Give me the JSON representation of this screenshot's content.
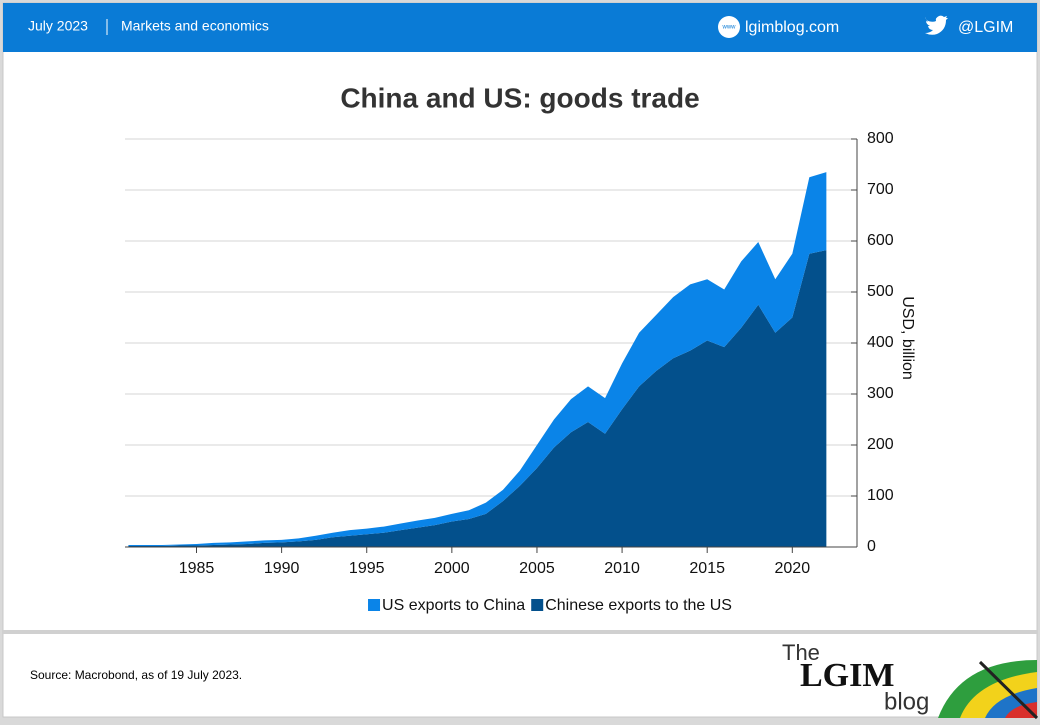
{
  "header": {
    "date": "July 2023",
    "section": "Markets and economics",
    "website": "lgimblog.com",
    "twitter": "@LGIM"
  },
  "footer": {
    "source": "Source: Macrobond, as of 19 July 2023.",
    "logo_the": "The",
    "logo_main": "LGIM",
    "logo_blog": "blog"
  },
  "chart_data": {
    "type": "stacked_area",
    "title": "China and US: goods trade",
    "y_label": "USD, billion",
    "x": [
      1981,
      1982,
      1983,
      1984,
      1985,
      1986,
      1987,
      1988,
      1989,
      1990,
      1991,
      1992,
      1993,
      1994,
      1995,
      1996,
      1997,
      1998,
      1999,
      2000,
      2001,
      2002,
      2003,
      2004,
      2005,
      2006,
      2007,
      2008,
      2009,
      2010,
      2011,
      2012,
      2013,
      2014,
      2015,
      2016,
      2017,
      2018,
      2019,
      2020,
      2021,
      2022
    ],
    "series": [
      {
        "name": "US exports to China",
        "color": "#0a84e8",
        "values": [
          2,
          2,
          2,
          2,
          3,
          4,
          4,
          5,
          5,
          5,
          6,
          8,
          9,
          11,
          11,
          12,
          13,
          14,
          14,
          15,
          17,
          22,
          22,
          30,
          45,
          55,
          65,
          70,
          70,
          90,
          105,
          110,
          120,
          130,
          120,
          113,
          130,
          123,
          105,
          125,
          150,
          153
        ]
      },
      {
        "name": "Chinese exports to the US",
        "color": "#03508c",
        "values": [
          2,
          2,
          2,
          3,
          3,
          4,
          5,
          6,
          8,
          9,
          11,
          14,
          19,
          22,
          25,
          28,
          33,
          38,
          43,
          50,
          55,
          65,
          90,
          120,
          155,
          195,
          225,
          245,
          222,
          270,
          315,
          345,
          370,
          385,
          405,
          392,
          430,
          475,
          420,
          450,
          575,
          582
        ]
      }
    ],
    "xlim": [
      1980.8,
      2023.8
    ],
    "xticks": [
      1985,
      1990,
      1995,
      2000,
      2005,
      2010,
      2015,
      2020
    ],
    "ylim": [
      0,
      800
    ],
    "yticks": [
      0,
      100,
      200,
      300,
      400,
      500,
      600,
      700,
      800
    ],
    "grid": true,
    "y_axis_side": "right",
    "legend": "bottom"
  }
}
